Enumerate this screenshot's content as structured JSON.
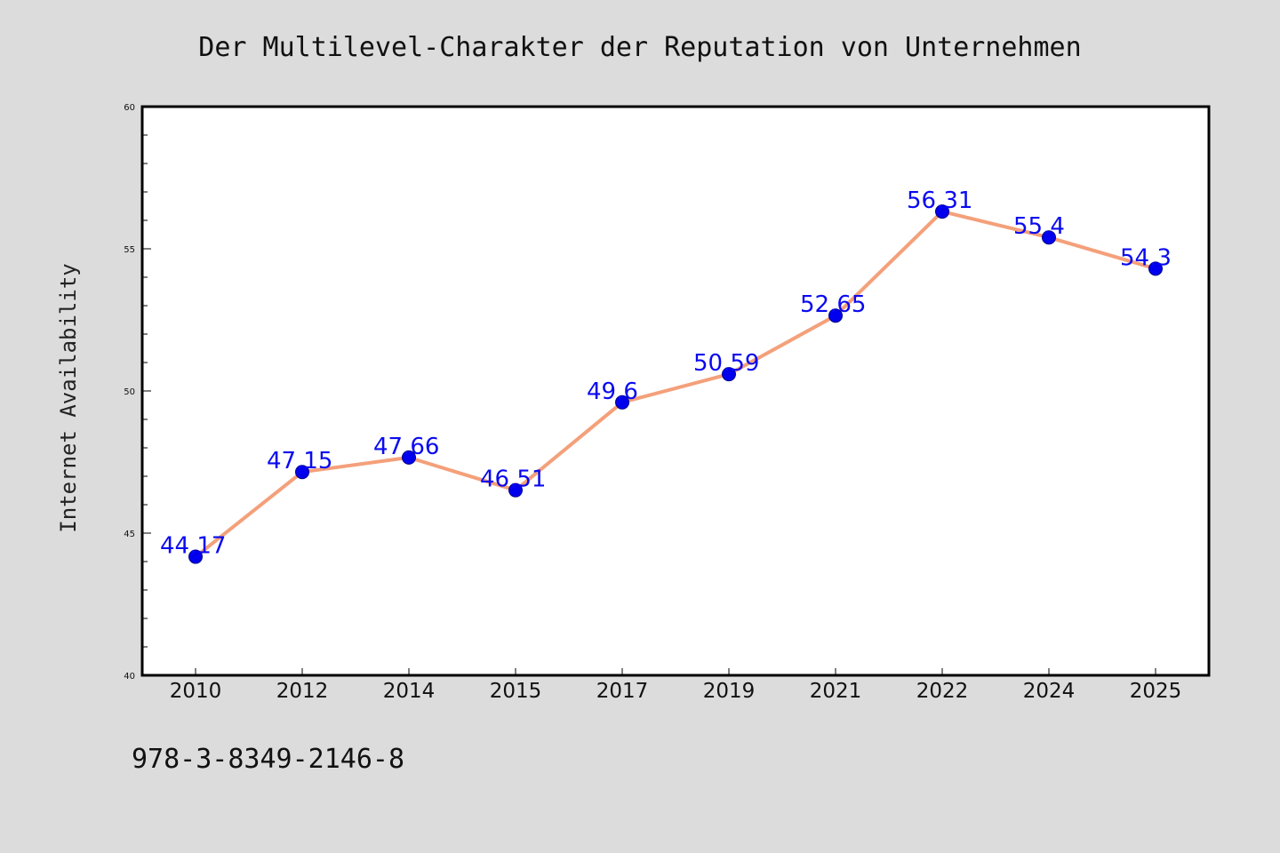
{
  "chart_data": {
    "type": "line",
    "title": "Der Multilevel-Charakter der Reputation von Unternehmen",
    "xlabel": "",
    "ylabel": "Internet Availability",
    "categories": [
      "2010",
      "2012",
      "2014",
      "2015",
      "2017",
      "2019",
      "2021",
      "2022",
      "2024",
      "2025"
    ],
    "series": [
      {
        "values": [
          44.17,
          47.15,
          47.66,
          46.51,
          49.6,
          50.59,
          52.65,
          56.31,
          55.4,
          54.3
        ],
        "labels": [
          "44.17",
          "47.15",
          "47.66",
          "46.51",
          "49.6",
          "50.59",
          "52.65",
          "56.31",
          "55.4",
          "54.3"
        ]
      }
    ],
    "ylim": [
      40,
      60
    ],
    "yticks": [
      "40",
      "45",
      "50",
      "55",
      "60"
    ],
    "grid": false,
    "legend": "none",
    "line_color": "#f4a07a",
    "marker_color": "#0000ee",
    "label_color": "#0a0af0"
  },
  "footer": {
    "isbn": "978-3-8349-2146-8"
  }
}
